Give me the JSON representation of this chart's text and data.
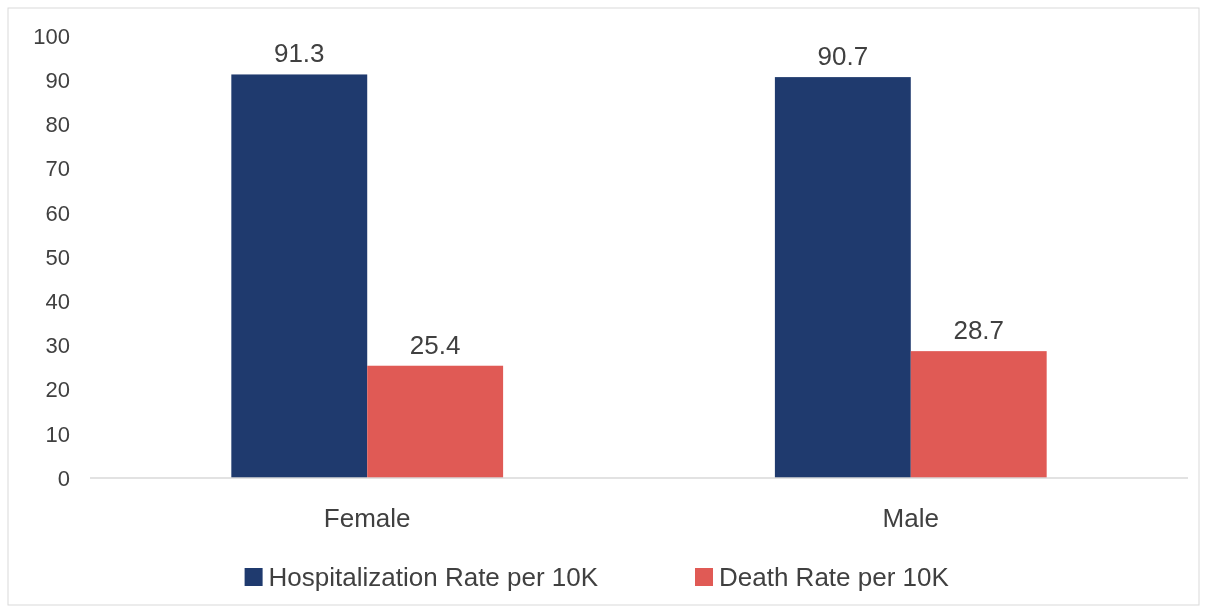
{
  "chart_data": {
    "type": "bar",
    "categories": [
      "Female",
      "Male"
    ],
    "series": [
      {
        "name": "Hospitalization Rate per 10K",
        "color": "#1f3a6e",
        "values": [
          91.3,
          90.7
        ]
      },
      {
        "name": "Death Rate per 10K",
        "color": "#e05a55",
        "values": [
          25.4,
          28.7
        ]
      }
    ],
    "ylim": [
      0,
      100
    ],
    "yticks": [
      0,
      10,
      20,
      30,
      40,
      50,
      60,
      70,
      80,
      90,
      100
    ],
    "data_labels": true,
    "legend": "bottom",
    "grid": false
  }
}
